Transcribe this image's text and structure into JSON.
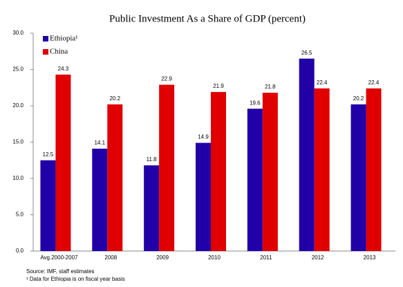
{
  "chart_data": {
    "type": "bar",
    "title": "Public Investment As a Share of GDP (percent)",
    "categories": [
      "Avg.2000-2007",
      "2008",
      "2009",
      "2010",
      "2011",
      "2012",
      "2013"
    ],
    "series": [
      {
        "name": "Ethiopia¹",
        "color": "#2200a8",
        "values": [
          12.5,
          14.1,
          11.8,
          14.9,
          19.6,
          26.5,
          20.2
        ]
      },
      {
        "name": "China",
        "color": "#e00000",
        "values": [
          24.3,
          20.2,
          22.9,
          21.9,
          21.8,
          22.4,
          22.4
        ]
      }
    ],
    "ylim": [
      0,
      30
    ],
    "yticks": [
      {
        "value": 0,
        "label": "0.0"
      },
      {
        "value": 5,
        "label": "5.0"
      },
      {
        "value": 10,
        "label": "10.0"
      },
      {
        "value": 15,
        "label": "15.0"
      },
      {
        "value": 20,
        "label": "20.0"
      },
      {
        "value": 25,
        "label": "25.0"
      },
      {
        "value": 30,
        "label": "30.0"
      }
    ],
    "grid": false,
    "legend": "upper left",
    "source": "Source: IMF, staff estimates",
    "footnote": "¹ Data for Ethiopia is on fiscal year basis"
  }
}
